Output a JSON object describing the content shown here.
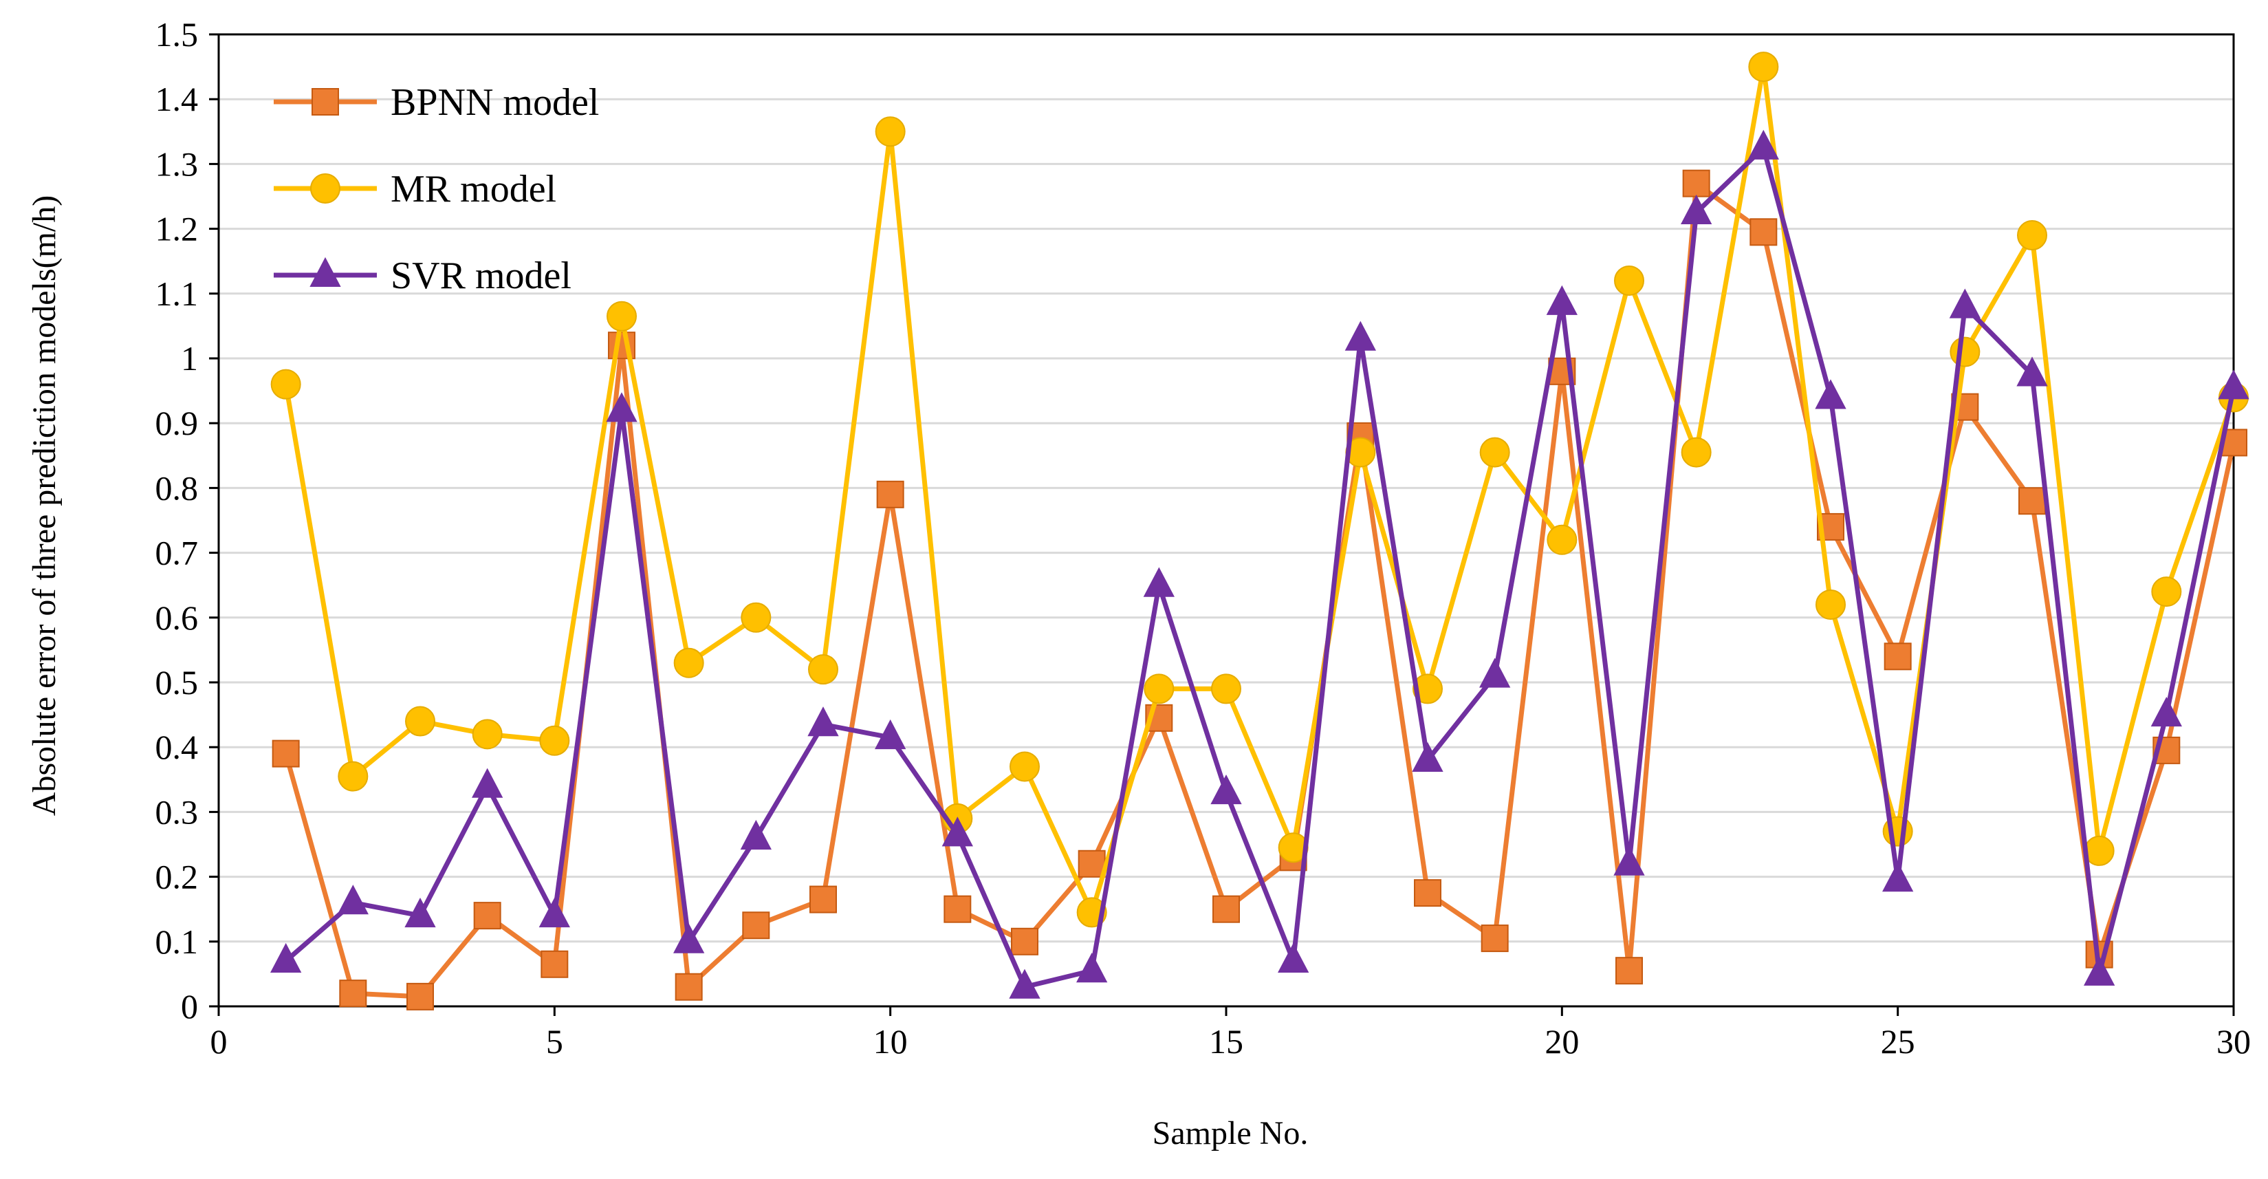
{
  "chart_data": {
    "type": "line",
    "title": "",
    "xlabel": "Sample No.",
    "ylabel": "Absolute error of three prediction models(m/h)",
    "xlim": [
      0,
      30
    ],
    "ylim": [
      0,
      1.5
    ],
    "xticks": [
      0,
      5,
      10,
      15,
      20,
      25,
      30
    ],
    "xtick_labels": [
      "0",
      "5",
      "10",
      "15",
      "20",
      "25",
      "30"
    ],
    "yticks": [
      0,
      0.1,
      0.2,
      0.3,
      0.4,
      0.5,
      0.6,
      0.7,
      0.8,
      0.9,
      1.0,
      1.1,
      1.2,
      1.3,
      1.4,
      1.5
    ],
    "ytick_labels": [
      "0",
      "0.1",
      "0.2",
      "0.3",
      "0.4",
      "0.5",
      "0.6",
      "0.7",
      "0.8",
      "0.9",
      "1",
      "1.1",
      "1.2",
      "1.3",
      "1.4",
      "1.5"
    ],
    "grid": "horizontal",
    "legend_position": "top-left",
    "x": [
      1,
      2,
      3,
      4,
      5,
      6,
      7,
      8,
      9,
      10,
      11,
      12,
      13,
      14,
      15,
      16,
      17,
      18,
      19,
      20,
      21,
      22,
      23,
      24,
      25,
      26,
      27,
      28,
      29,
      30
    ],
    "series": [
      {
        "name": "BPNN model",
        "color": "#ED7D31",
        "marker": "square",
        "values": [
          0.39,
          0.02,
          0.015,
          0.14,
          0.065,
          1.02,
          0.03,
          0.125,
          0.165,
          0.79,
          0.15,
          0.1,
          0.22,
          0.445,
          0.15,
          0.23,
          0.88,
          0.175,
          0.105,
          0.98,
          0.055,
          1.27,
          1.195,
          0.74,
          0.54,
          0.925,
          0.78,
          0.08,
          0.395,
          0.87
        ]
      },
      {
        "name": "MR model",
        "color": "#FFC000",
        "marker": "circle",
        "values": [
          0.96,
          0.355,
          0.44,
          0.42,
          0.41,
          1.065,
          0.53,
          0.6,
          0.52,
          1.35,
          0.29,
          0.37,
          0.145,
          0.49,
          0.49,
          0.245,
          0.855,
          0.49,
          0.855,
          0.72,
          1.12,
          0.855,
          1.45,
          0.62,
          0.27,
          1.01,
          1.19,
          0.24,
          0.64,
          0.94
        ]
      },
      {
        "name": "SVR model",
        "color": "#7030A0",
        "marker": "triangle",
        "values": [
          0.07,
          0.16,
          0.14,
          0.34,
          0.14,
          0.92,
          0.1,
          0.26,
          0.435,
          0.415,
          0.265,
          0.03,
          0.055,
          0.65,
          0.33,
          0.07,
          1.03,
          0.38,
          0.51,
          1.085,
          0.22,
          1.225,
          1.325,
          0.94,
          0.195,
          1.08,
          0.975,
          0.05,
          0.45,
          0.955
        ]
      }
    ]
  }
}
